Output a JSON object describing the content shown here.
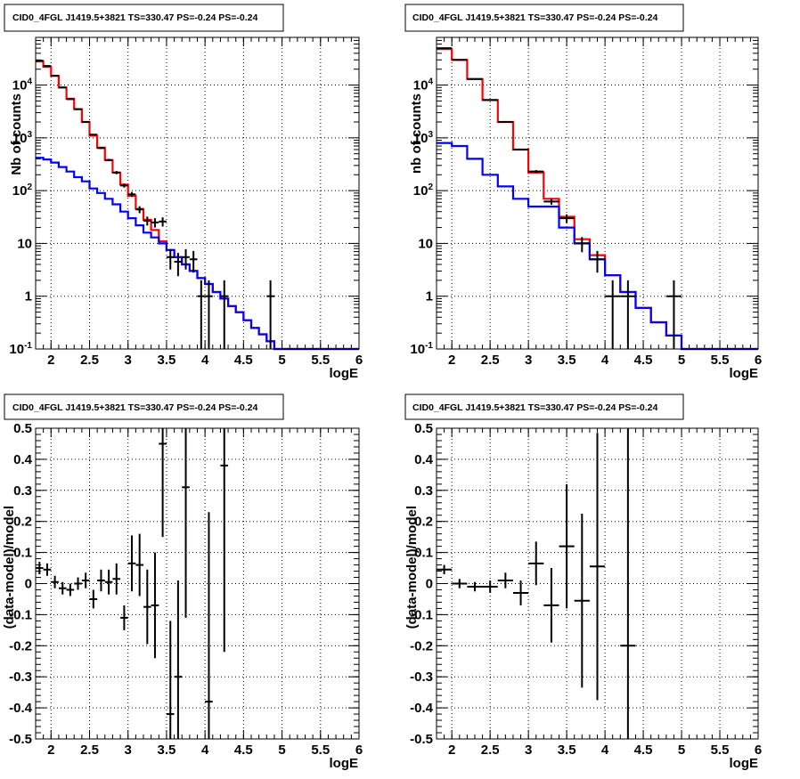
{
  "chart_data": [
    {
      "type": "line",
      "title": "CID0_4FGL J1419.5+3821 TS=330.47 PS=-0.24 PS=-0.24",
      "xlabel": "logE",
      "ylabel": "Nb of counts",
      "xlim": [
        1.8,
        6.0
      ],
      "ylim": [
        0.1,
        80000
      ],
      "yscale": "log",
      "grid": true,
      "xticks": [
        "2",
        "2.5",
        "3",
        "3.5",
        "4",
        "4.5",
        "5",
        "5.5",
        "6"
      ],
      "yticks": [
        "10^{-1}",
        "1",
        "10",
        "10^{2}",
        "10^{3}",
        "10^{4}"
      ],
      "bin_edges": [
        1.8,
        1.9,
        2.0,
        2.1,
        2.2,
        2.3,
        2.4,
        2.5,
        2.6,
        2.7,
        2.8,
        2.9,
        3.0,
        3.1,
        3.2,
        3.3,
        3.4,
        3.5,
        3.6,
        3.7,
        3.8,
        3.9,
        4.0,
        4.1,
        4.2,
        4.3,
        4.4,
        4.5,
        4.6,
        4.7,
        4.8,
        4.9,
        5.0,
        5.1,
        5.2,
        5.3,
        5.4,
        5.5,
        5.6,
        5.7,
        5.8,
        5.9,
        6.0
      ],
      "series": [
        {
          "color": "#ff0000",
          "style": "step",
          "values": [
            28000,
            22000,
            15000,
            9000,
            5500,
            3500,
            2000,
            1100,
            650,
            380,
            220,
            130,
            80,
            45,
            28,
            18,
            11,
            7.5,
            5.5,
            4,
            3,
            2.2,
            1.7,
            1.2,
            0.9,
            0.65,
            0.5,
            0.35,
            0.25,
            0.19,
            0.14,
            0.1,
            0.1,
            0.1,
            0.1,
            0.1,
            0.1,
            0.1,
            0.1,
            0.1,
            0.1,
            0.1
          ]
        },
        {
          "color": "#0000ff",
          "style": "step",
          "values": [
            420,
            390,
            340,
            280,
            230,
            180,
            150,
            110,
            90,
            70,
            55,
            40,
            30,
            22,
            16,
            13,
            10,
            7.5,
            5.5,
            4,
            3,
            2.2,
            1.7,
            1.2,
            0.9,
            0.65,
            0.5,
            0.35,
            0.25,
            0.19,
            0.14,
            0.1,
            0.1,
            0.1,
            0.1,
            0.1,
            0.1,
            0.1,
            0.1,
            0.1,
            0.1,
            0.1
          ]
        },
        {
          "color": "#000000",
          "style": "errorbar",
          "x": [
            1.85,
            1.95,
            2.05,
            2.15,
            2.25,
            2.35,
            2.45,
            2.55,
            2.65,
            2.75,
            2.85,
            2.95,
            3.05,
            3.15,
            3.25,
            3.35,
            3.45,
            3.55,
            3.65,
            3.75,
            3.85,
            3.95,
            4.05,
            4.25,
            4.85
          ],
          "y": [
            29000,
            23000,
            15000,
            9000,
            5400,
            3500,
            2000,
            1150,
            640,
            380,
            220,
            125,
            85,
            44,
            27,
            25,
            26,
            5.5,
            4.5,
            5.5,
            5,
            1,
            1,
            1,
            1
          ],
          "yerr": [
            170,
            150,
            122,
            95,
            73,
            59,
            45,
            34,
            25,
            19,
            15,
            11,
            9.2,
            6.6,
            5.2,
            5,
            5.1,
            2.3,
            2.1,
            2.3,
            2.2,
            1,
            1,
            1,
            1
          ]
        }
      ]
    },
    {
      "type": "line",
      "title": "CID0_4FGL J1419.5+3821 TS=330.47 PS=-0.24 PS=-0.24",
      "xlabel": "logE",
      "ylabel": "nb of counts",
      "xlim": [
        1.8,
        6.0
      ],
      "ylim": [
        0.1,
        80000
      ],
      "yscale": "log",
      "grid": true,
      "xticks": [
        "2",
        "2.5",
        "3",
        "3.5",
        "4",
        "4.5",
        "5",
        "5.5",
        "6"
      ],
      "yticks": [
        "10^{-1}",
        "1",
        "10",
        "10^{2}",
        "10^{3}",
        "10^{4}"
      ],
      "bin_edges": [
        1.8,
        2.0,
        2.2,
        2.4,
        2.6,
        2.8,
        3.0,
        3.2,
        3.4,
        3.6,
        3.8,
        4.0,
        4.2,
        4.4,
        4.6,
        4.8,
        5.0,
        5.2,
        5.4,
        5.6,
        5.8,
        6.0
      ],
      "series": [
        {
          "color": "#ff0000",
          "style": "step",
          "values": [
            48000,
            30000,
            13000,
            5200,
            2000,
            600,
            220,
            70,
            32,
            12,
            6,
            2.5,
            1.2,
            0.6,
            0.32,
            0.18,
            0.1,
            0.1,
            0.1,
            0.1,
            0.1
          ]
        },
        {
          "color": "#0000ff",
          "style": "step",
          "values": [
            800,
            700,
            400,
            200,
            120,
            70,
            50,
            50,
            20,
            10,
            5,
            2.5,
            1.2,
            0.6,
            0.32,
            0.18,
            0.1,
            0.1,
            0.1,
            0.1,
            0.1
          ]
        },
        {
          "color": "#000000",
          "style": "errorbar",
          "x": [
            1.9,
            2.1,
            2.3,
            2.5,
            2.7,
            2.9,
            3.1,
            3.3,
            3.5,
            3.7,
            3.9,
            4.1,
            4.3,
            4.9
          ],
          "y": [
            50000,
            30000,
            13000,
            5200,
            2000,
            600,
            230,
            62,
            30,
            10,
            5,
            1,
            1,
            1
          ],
          "yerr": [
            224,
            173,
            114,
            72,
            45,
            24,
            15,
            7.9,
            5.5,
            3.2,
            2.2,
            1,
            1,
            1
          ]
        }
      ]
    },
    {
      "type": "scatter",
      "title": "CID0_4FGL J1419.5+3821 TS=330.47 PS=-0.24 PS=-0.24",
      "xlabel": "logE",
      "ylabel": "(data-model)/model",
      "xlim": [
        1.8,
        6.0
      ],
      "ylim": [
        -0.5,
        0.5
      ],
      "grid": true,
      "xticks": [
        "2",
        "2.5",
        "3",
        "3.5",
        "4",
        "4.5",
        "5",
        "5.5",
        "6"
      ],
      "yticks": [
        "-0.5",
        "-0.4",
        "-0.3",
        "-0.2",
        "-0.1",
        "0",
        "0.1",
        "0.2",
        "0.3",
        "0.4",
        "0.5"
      ],
      "series": [
        {
          "color": "#000000",
          "style": "errorbar",
          "xerr": 0.05,
          "x": [
            1.85,
            1.95,
            2.05,
            2.15,
            2.25,
            2.35,
            2.45,
            2.55,
            2.65,
            2.75,
            2.85,
            2.95,
            3.05,
            3.15,
            3.25,
            3.35,
            3.45,
            3.55,
            3.65,
            3.75,
            4.05,
            4.25
          ],
          "y": [
            0.05,
            0.045,
            0.005,
            -0.015,
            -0.02,
            0.0,
            0.01,
            -0.05,
            0.01,
            0.005,
            0.015,
            -0.11,
            0.065,
            0.06,
            -0.075,
            -0.07,
            0.45,
            -0.42,
            -0.3,
            0.31,
            -0.38,
            0.38
          ],
          "yerr": [
            0.02,
            0.02,
            0.02,
            0.02,
            0.02,
            0.02,
            0.025,
            0.03,
            0.035,
            0.04,
            0.05,
            0.04,
            0.09,
            0.1,
            0.12,
            0.17,
            0.3,
            0.3,
            0.31,
            0.42,
            0.61,
            0.6
          ]
        }
      ]
    },
    {
      "type": "scatter",
      "title": "CID0_4FGL J1419.5+3821 TS=330.47 PS=-0.24 PS=-0.24",
      "xlabel": "logE",
      "ylabel": "(data-model)/model",
      "xlim": [
        1.8,
        6.0
      ],
      "ylim": [
        -0.5,
        0.5
      ],
      "grid": true,
      "xticks": [
        "2",
        "2.5",
        "3",
        "3.5",
        "4",
        "4.5",
        "5",
        "5.5",
        "6"
      ],
      "yticks": [
        "-0.5",
        "-0.4",
        "-0.3",
        "-0.2",
        "-0.1",
        "0",
        "0.1",
        "0.2",
        "0.3",
        "0.4",
        "0.5"
      ],
      "series": [
        {
          "color": "#000000",
          "style": "errorbar",
          "xerr": 0.1,
          "x": [
            1.9,
            2.1,
            2.3,
            2.5,
            2.7,
            2.9,
            3.1,
            3.3,
            3.5,
            3.7,
            3.9,
            4.3
          ],
          "y": [
            0.045,
            0.0,
            -0.01,
            -0.01,
            0.01,
            -0.03,
            0.065,
            -0.07,
            0.12,
            -0.055,
            0.055,
            -0.2
          ],
          "yerr": [
            0.015,
            0.015,
            0.015,
            0.02,
            0.025,
            0.04,
            0.07,
            0.12,
            0.2,
            0.28,
            0.43,
            0.85
          ]
        }
      ]
    }
  ]
}
